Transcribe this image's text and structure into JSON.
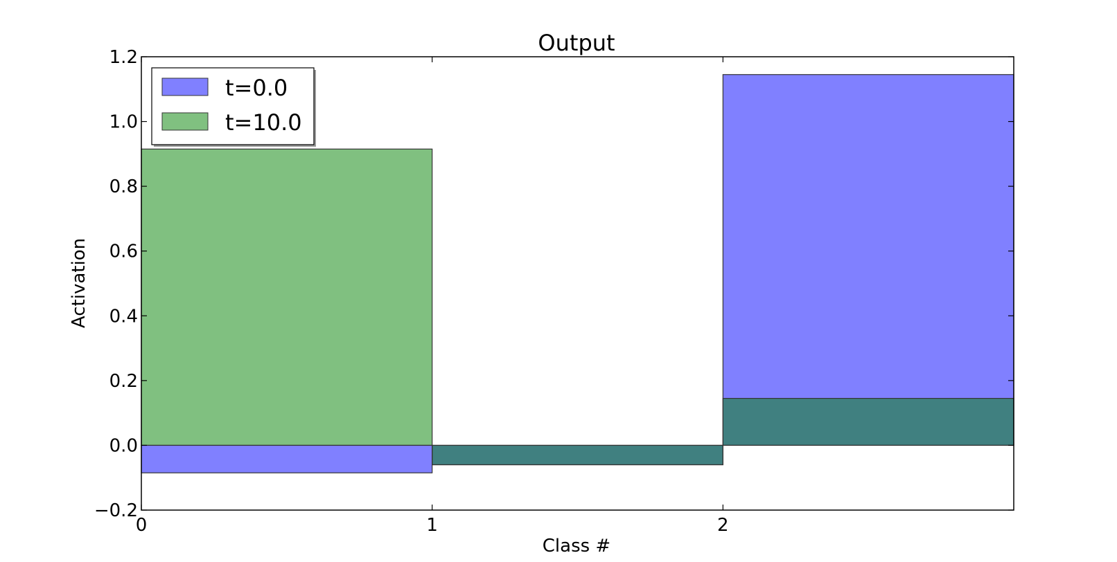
{
  "chart_data": {
    "type": "bar",
    "title": "Output",
    "xlabel": "Class #",
    "ylabel": "Activation",
    "xlim": [
      0,
      3
    ],
    "ylim": [
      -0.2,
      1.2
    ],
    "x_ticks": [
      0,
      1,
      2
    ],
    "x_tick_labels": [
      "0",
      "1",
      "2"
    ],
    "y_ticks": [
      -0.2,
      0.0,
      0.2,
      0.4,
      0.6,
      0.8,
      1.0,
      1.2
    ],
    "y_tick_labels": [
      "−0.2",
      "0.0",
      "0.2",
      "0.4",
      "0.6",
      "0.8",
      "1.0",
      "1.2"
    ],
    "categories": [
      "0",
      "1",
      "2"
    ],
    "series": [
      {
        "name": "t=0.0",
        "values": [
          -0.085,
          -0.06,
          1.145
        ],
        "color": "#8080ff"
      },
      {
        "name": "t=10.0",
        "values": [
          0.915,
          -0.06,
          0.145
        ],
        "color": "#80c080"
      }
    ],
    "overlap_color": "#408080",
    "grid": false,
    "legend_position": "top-left"
  }
}
